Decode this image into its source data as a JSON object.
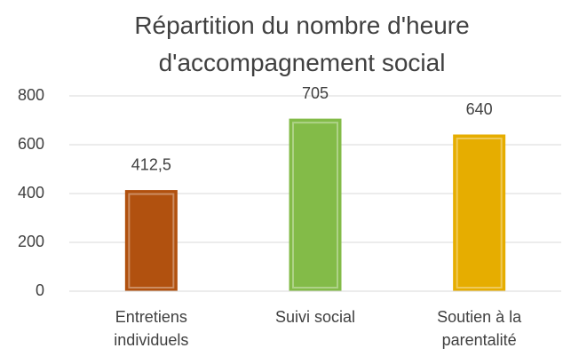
{
  "chart_data": {
    "type": "bar",
    "title": "Répartition du nombre d'heure d'accompagnement social",
    "categories": [
      "Entretiens individuels",
      "Suivi social",
      "Soutien à la parentalité"
    ],
    "values": [
      412.5,
      705,
      640
    ],
    "value_labels": [
      "412,5",
      "705",
      "640"
    ],
    "colors": [
      "#c55a11",
      "#92d050",
      "#ffc000"
    ],
    "ylim": [
      0,
      800
    ],
    "yticks": [
      0,
      200,
      400,
      600,
      800
    ],
    "grid": true
  }
}
